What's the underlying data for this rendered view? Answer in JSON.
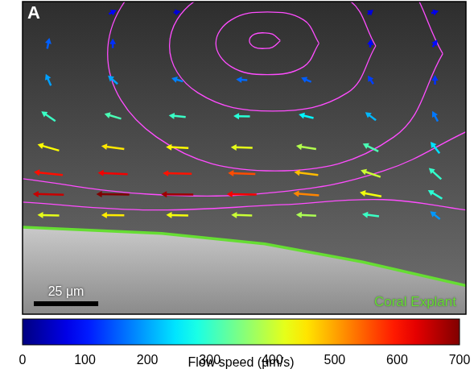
{
  "chart_data": {
    "type": "quiver",
    "panel_label": "A",
    "tick_labels": false,
    "grid": false,
    "xlim": [
      0,
      172
    ],
    "ylim": [
      0,
      120
    ],
    "scale_bar": {
      "label": "25 μm",
      "length": 25
    },
    "annotations": [
      "Coral Explant"
    ],
    "vectors": {
      "x": [
        10,
        35,
        60,
        85,
        110,
        135,
        160,
        10,
        35,
        60,
        85,
        110,
        135,
        160,
        10,
        35,
        60,
        85,
        110,
        135,
        160,
        10,
        35,
        60,
        85,
        110,
        135,
        160,
        10,
        35,
        60,
        85,
        110,
        135,
        160,
        10,
        35,
        60,
        85,
        110,
        135,
        160,
        10,
        35,
        135,
        160,
        35,
        60,
        135,
        160
      ],
      "y": [
        38,
        38,
        38,
        38,
        38,
        38,
        38,
        46,
        46,
        46,
        46,
        46,
        46,
        46,
        54,
        54,
        54,
        54,
        54,
        54,
        54,
        64,
        64,
        64,
        64,
        64,
        64,
        64,
        76,
        76,
        76,
        76,
        76,
        76,
        76,
        90,
        90,
        90,
        90,
        90,
        90,
        90,
        104,
        104,
        104,
        104,
        116,
        116,
        116,
        116
      ],
      "vx": [
        -420,
        -450,
        -430,
        -400,
        -380,
        -300,
        -150,
        -650,
        -700,
        -680,
        -620,
        -520,
        -420,
        -250,
        -600,
        -620,
        -600,
        -560,
        -480,
        -380,
        -220,
        -420,
        -450,
        -440,
        -420,
        -380,
        -280,
        -150,
        -250,
        -300,
        -300,
        -290,
        -250,
        -170,
        -80,
        -80,
        -150,
        -170,
        -160,
        -140,
        -70,
        0,
        30,
        0,
        10,
        50,
        80,
        60,
        50,
        70
      ],
      "vy": [
        10,
        5,
        10,
        15,
        20,
        40,
        120,
        20,
        10,
        5,
        10,
        40,
        80,
        150,
        60,
        30,
        15,
        20,
        60,
        130,
        200,
        120,
        60,
        20,
        10,
        60,
        140,
        190,
        170,
        90,
        30,
        5,
        60,
        130,
        150,
        180,
        130,
        50,
        10,
        60,
        110,
        120,
        150,
        120,
        90,
        80,
        40,
        10,
        40,
        20
      ]
    },
    "streamlines": [
      {
        "x": [
          100,
          97,
          94,
          90,
          88,
          90,
          94,
          97,
          100
        ],
        "y": [
          105,
          107.5,
          108,
          107.5,
          105,
          102.5,
          102,
          102.5,
          105
        ]
      },
      {
        "x": [
          115,
          109,
          95,
          81,
          75,
          81,
          95,
          109,
          115
        ],
        "y": [
          104,
          113,
          116,
          113,
          104,
          95,
          92,
          95,
          104
        ]
      },
      {
        "x": [
          137,
          126,
          97,
          68,
          57,
          68,
          97,
          126,
          137
        ],
        "y": [
          103,
          121,
          128,
          121,
          103,
          85,
          78,
          85,
          103
        ]
      },
      {
        "x": [
          163,
          144,
          98,
          52,
          33,
          52,
          98,
          144,
          163
        ],
        "y": [
          100,
          132,
          145,
          132,
          100,
          68,
          55,
          68,
          100
        ]
      },
      {
        "x": [
          172,
          140,
          100,
          50,
          0
        ],
        "y": [
          70,
          55,
          47,
          46,
          52
        ]
      },
      {
        "x": [
          172,
          140,
          100,
          50,
          0
        ],
        "y": [
          40,
          44,
          42,
          40,
          43
        ]
      }
    ],
    "explant_boundary": {
      "x": [
        0,
        54,
        94,
        132,
        172
      ],
      "y": [
        33.4,
        31,
        27,
        20,
        11
      ]
    },
    "colorbar": {
      "label": "Flow speed (μm/s)",
      "range": [
        0,
        700
      ],
      "ticks": [
        0,
        100,
        200,
        300,
        400,
        500,
        600,
        700
      ]
    }
  }
}
